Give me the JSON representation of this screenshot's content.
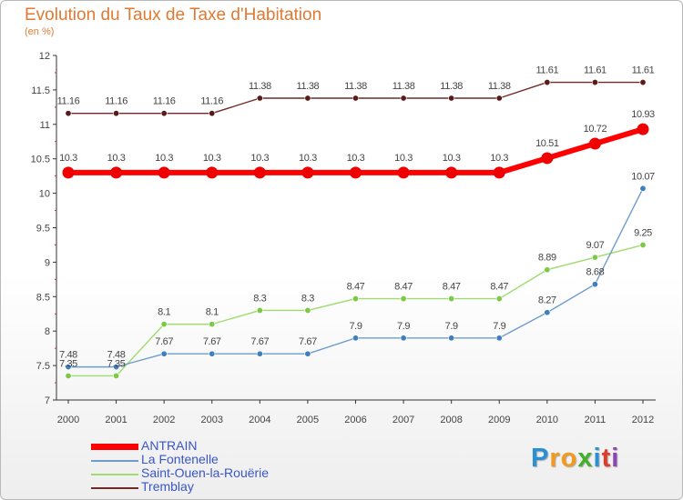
{
  "header": {
    "title": "Evolution du Taux de Taxe d'Habitation",
    "unit": "(en %)"
  },
  "chart_data": {
    "type": "line",
    "title": "Evolution du Taux de Taxe d'Habitation",
    "ylabel": "(en %)",
    "xlabel": "",
    "x": [
      "2000",
      "2001",
      "2002",
      "2003",
      "2004",
      "2005",
      "2006",
      "2007",
      "2008",
      "2009",
      "2010",
      "2011",
      "2012"
    ],
    "ylim": [
      7,
      12
    ],
    "yticks": [
      "7",
      "7.5",
      "8",
      "8.5",
      "9",
      "9.5",
      "10",
      "10.5",
      "11",
      "11.5",
      "12"
    ],
    "grid": false,
    "legend_position": "bottom-left",
    "series": [
      {
        "name": "ANTRAIN",
        "color": "#ff0000",
        "values": [
          10.3,
          10.3,
          10.3,
          10.3,
          10.3,
          10.3,
          10.3,
          10.3,
          10.3,
          10.3,
          10.51,
          10.72,
          10.93
        ],
        "labels": [
          "10.3",
          "10.3",
          "10.3",
          "10.3",
          "10.3",
          "10.3",
          "10.3",
          "10.3",
          "10.3",
          "10.3",
          "10.51",
          "10.72",
          "10.93"
        ]
      },
      {
        "name": "La Fontenelle",
        "color": "#6f9ccb",
        "values": [
          7.48,
          7.48,
          7.67,
          7.67,
          7.67,
          7.67,
          7.9,
          7.9,
          7.9,
          7.9,
          8.27,
          8.68,
          10.07
        ],
        "labels": [
          "7.48",
          "7.48",
          "7.67",
          "7.67",
          "7.67",
          "7.67",
          "7.9",
          "7.9",
          "7.9",
          "7.9",
          "8.27",
          "8.68",
          "10.07"
        ]
      },
      {
        "name": "Saint-Ouen-la-Rouërie",
        "color": "#9fdb6e",
        "values": [
          7.35,
          7.35,
          8.1,
          8.1,
          8.3,
          8.3,
          8.47,
          8.47,
          8.47,
          8.47,
          8.89,
          9.07,
          9.25
        ],
        "labels": [
          "7.35",
          "7.35",
          "8.1",
          "8.1",
          "8.3",
          "8.3",
          "8.47",
          "8.47",
          "8.47",
          "8.47",
          "8.89",
          "9.07",
          "9.25"
        ]
      },
      {
        "name": "Tremblay",
        "color": "#6e2a2a",
        "values": [
          11.16,
          11.16,
          11.16,
          11.16,
          11.38,
          11.38,
          11.38,
          11.38,
          11.38,
          11.38,
          11.61,
          11.61,
          11.61
        ],
        "labels": [
          "11.16",
          "11.16",
          "11.16",
          "11.16",
          "11.38",
          "11.38",
          "11.38",
          "11.38",
          "11.38",
          "11.38",
          "11.61",
          "11.61",
          "11.61"
        ]
      }
    ]
  },
  "legend": {
    "items": [
      {
        "label": "ANTRAIN",
        "color": "#ff0000"
      },
      {
        "label": "La Fontenelle",
        "color": "#6f9ccb"
      },
      {
        "label": "Saint-Ouen-la-Rouërie",
        "color": "#9fdb6e"
      },
      {
        "label": "Tremblay",
        "color": "#6e2a2a"
      }
    ]
  },
  "logo": {
    "letters": [
      {
        "ch": "P",
        "color": "#2b8fd6"
      },
      {
        "ch": "r",
        "color": "#f39a1e"
      },
      {
        "ch": "o",
        "color": "#f39a1e"
      },
      {
        "ch": "x",
        "color": "#43b02a"
      },
      {
        "ch": "i",
        "color": "#2b8fd6"
      },
      {
        "ch": "t",
        "color": "#e23a2a"
      },
      {
        "ch": "i",
        "color": "#8a46b8"
      }
    ]
  }
}
